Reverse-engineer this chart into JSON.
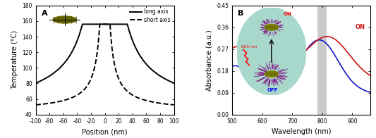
{
  "panel_A": {
    "title": "A",
    "xlabel": "Position (nm)",
    "ylabel": "Temperature (°C)",
    "xlim": [
      -100,
      100
    ],
    "ylim": [
      40,
      180
    ],
    "yticks": [
      40,
      60,
      80,
      100,
      120,
      140,
      160,
      180
    ],
    "xticks": [
      -100,
      -80,
      -60,
      -40,
      -20,
      0,
      20,
      40,
      60,
      80,
      100
    ],
    "long_axis_half": 32.5,
    "short_axis_half": 7.5,
    "T_max": 156,
    "T_min": 44,
    "decay_scale_long": 28,
    "decay_scale_short": 28,
    "line_color": "black",
    "line_width": 1.4
  },
  "panel_B": {
    "title": "B",
    "xlabel": "Wavelength (nm)",
    "ylabel": "Absorbance (a.u.)",
    "xlim": [
      500,
      960
    ],
    "ylim": [
      0.0,
      0.45
    ],
    "yticks": [
      0.0,
      0.09,
      0.18,
      0.27,
      0.36,
      0.45
    ],
    "xticks": [
      500,
      600,
      700,
      800,
      900
    ],
    "laser_wavelength": 800,
    "laser_band_color": "#999999",
    "laser_band_alpha": 0.5,
    "laser_band_lo": 785,
    "laser_band_hi": 815,
    "off_color": "#1515cc",
    "on_color": "#cc1515",
    "off_label": "OFF",
    "on_label": "ON",
    "inset_bg_color": "#a8d8cc"
  }
}
